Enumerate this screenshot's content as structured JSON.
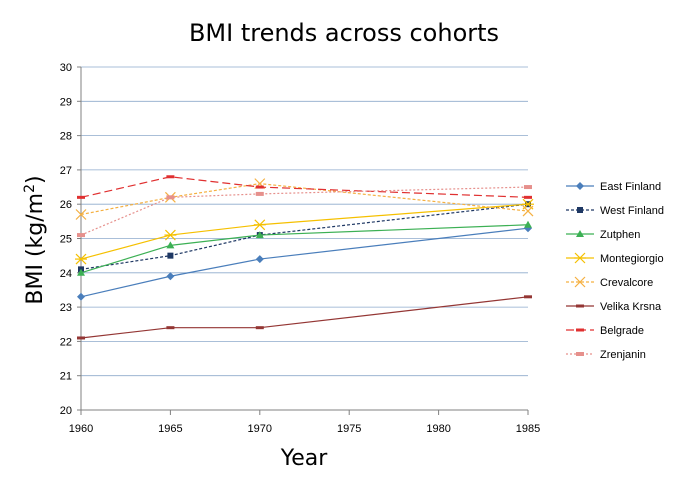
{
  "chart_data": {
    "type": "line",
    "title": "BMI trends across cohorts",
    "xlabel": "Year",
    "ylabel_main": "BMI (kg/m",
    "ylabel_sup": "2",
    "ylabel_end": ")",
    "xlim": [
      1960,
      1985
    ],
    "ylim": [
      20,
      30
    ],
    "xticks": [
      "1960",
      "1965",
      "1970",
      "1975",
      "1980",
      "1985"
    ],
    "yticks": [
      "20",
      "21",
      "22",
      "23",
      "24",
      "25",
      "26",
      "27",
      "28",
      "29",
      "30"
    ],
    "grid": "horizontal",
    "legend_position": "right",
    "series": [
      {
        "name": "East Finland",
        "color": "#4a7ebb",
        "dash": "solid",
        "marker": "diamond",
        "x": [
          1960,
          1965,
          1970,
          1985
        ],
        "y": [
          23.3,
          23.9,
          24.4,
          25.3
        ]
      },
      {
        "name": "West Finland",
        "color": "#1f3864",
        "dash": "dashed",
        "marker": "square",
        "x": [
          1960,
          1965,
          1970,
          1985
        ],
        "y": [
          24.1,
          24.5,
          25.1,
          26.0
        ]
      },
      {
        "name": "Zutphen",
        "color": "#3cb054",
        "dash": "solid",
        "marker": "triangle",
        "x": [
          1960,
          1965,
          1970,
          1985
        ],
        "y": [
          24.0,
          24.8,
          25.1,
          25.4
        ]
      },
      {
        "name": "Montegiorgio",
        "color": "#f5c000",
        "dash": "solid",
        "marker": "asterisk",
        "x": [
          1960,
          1965,
          1970,
          1985
        ],
        "y": [
          24.4,
          25.1,
          25.4,
          26.0
        ]
      },
      {
        "name": "Crevalcore",
        "color": "#f5b041",
        "dash": "dashed",
        "marker": "x",
        "x": [
          1960,
          1965,
          1970,
          1985
        ],
        "y": [
          25.7,
          26.2,
          26.6,
          25.8
        ]
      },
      {
        "name": "Velika Krsna",
        "color": "#943634",
        "dash": "solid",
        "marker": "bar",
        "x": [
          1960,
          1965,
          1970,
          1985
        ],
        "y": [
          22.1,
          22.4,
          22.4,
          23.3
        ]
      },
      {
        "name": "Belgrade",
        "color": "#e03030",
        "dash": "longdash",
        "marker": "bar",
        "x": [
          1960,
          1965,
          1970,
          1985
        ],
        "y": [
          26.2,
          26.8,
          26.5,
          26.2
        ]
      },
      {
        "name": "Zrenjanin",
        "color": "#e6908c",
        "dash": "dotted",
        "marker": "smallsquare",
        "x": [
          1960,
          1965,
          1970,
          1985
        ],
        "y": [
          25.1,
          26.2,
          26.3,
          26.5
        ]
      }
    ]
  }
}
